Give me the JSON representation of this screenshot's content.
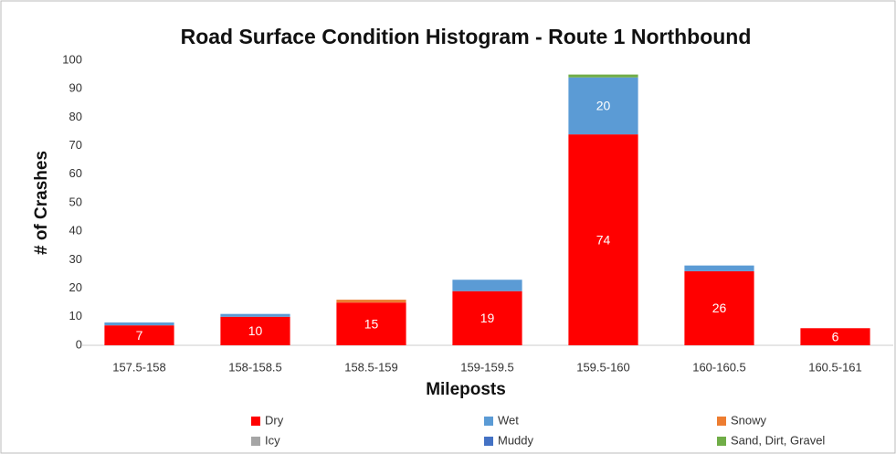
{
  "chart_data": {
    "type": "stacked_bar",
    "title": "Road Surface Condition Histogram - Route 1 Northbound",
    "x_label": "Mileposts",
    "y_label": "# of Crashes",
    "categories": [
      "157.5-158",
      "158-158.5",
      "158.5-159",
      "159-159.5",
      "159.5-160",
      "160-160.5",
      "160.5-161"
    ],
    "series": [
      {
        "name": "Dry",
        "color": "#ff0000",
        "values": [
          7,
          10,
          15,
          19,
          74,
          26,
          6
        ]
      },
      {
        "name": "Wet",
        "color": "#5b9bd5",
        "values": [
          1,
          1,
          0,
          4,
          20,
          2,
          0
        ]
      },
      {
        "name": "Snowy",
        "color": "#ed7d31",
        "values": [
          0,
          0,
          1,
          0,
          0,
          0,
          0
        ]
      },
      {
        "name": "Icy",
        "color": "#a5a5a5",
        "values": [
          0,
          0,
          0,
          0,
          0,
          0,
          0
        ]
      },
      {
        "name": "Muddy",
        "color": "#4472c4",
        "values": [
          0,
          0,
          0,
          0,
          0,
          0,
          0
        ]
      },
      {
        "name": "Sand, Dirt, Gravel",
        "color": "#70ad47",
        "values": [
          0,
          0,
          0,
          0,
          1,
          0,
          0
        ]
      }
    ],
    "ylim": [
      0,
      100
    ],
    "yticks": [
      0,
      10,
      20,
      30,
      40,
      50,
      60,
      70,
      80,
      90,
      100
    ],
    "grid": false,
    "legend": "bottom"
  }
}
